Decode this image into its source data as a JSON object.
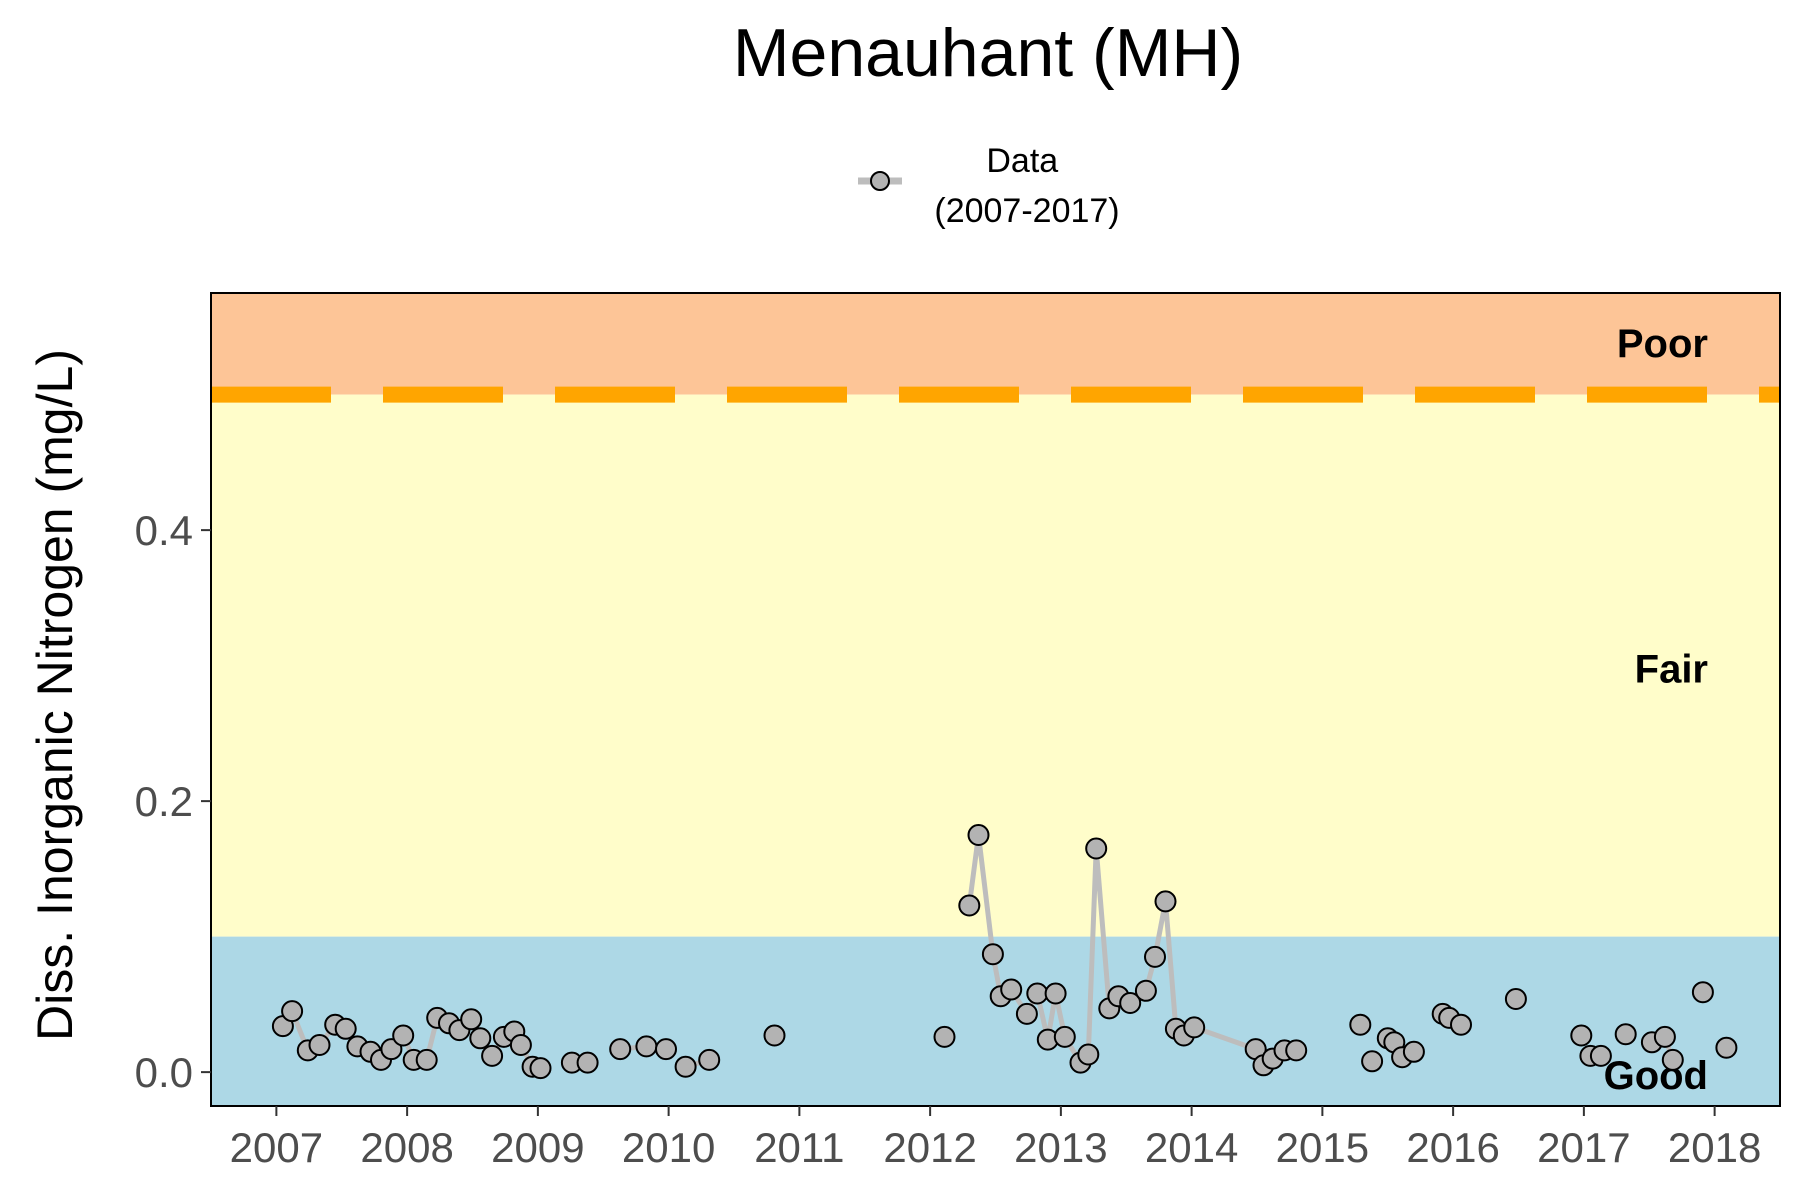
{
  "chart_data": {
    "type": "line",
    "title": "Menauhant (MH)",
    "xlabel": "",
    "ylabel": "Diss. Inorganic Nitrogen (mg/L)",
    "xlim": [
      2006.5,
      2018.5
    ],
    "ylim": [
      -0.025,
      0.575
    ],
    "x_ticks": [
      "2007",
      "2008",
      "2009",
      "2010",
      "2011",
      "2012",
      "2013",
      "2014",
      "2015",
      "2016",
      "2017",
      "2018"
    ],
    "y_ticks": [
      "0.0",
      "0.2",
      "0.4"
    ],
    "y_tick_values": [
      0.0,
      0.2,
      0.4
    ],
    "legend": {
      "position": "top",
      "label": "Data\n(2007-2017)",
      "label_lines": [
        "Data",
        "(2007-2017)"
      ]
    },
    "threshold": {
      "value": 0.5,
      "color": "#ffa500",
      "style": "dashed"
    },
    "zones": [
      {
        "label": "Poor",
        "from": 0.5,
        "to": 0.575,
        "color": "#fdc597"
      },
      {
        "label": "Fair",
        "from": 0.1,
        "to": 0.5,
        "color": "#fffdca"
      },
      {
        "label": "Good",
        "from": -0.025,
        "to": 0.1,
        "color": "#add8e6"
      }
    ],
    "series": [
      {
        "name": "Data (2007-2017)",
        "line_color": "#bdbdbd",
        "marker_fill": "#b3b3b3",
        "marker_stroke": "#000000",
        "segments": [
          [
            [
              2007.05,
              0.034
            ],
            [
              2007.12,
              0.045
            ],
            [
              2007.24,
              0.016
            ],
            [
              2007.33,
              0.02
            ],
            [
              2007.45,
              0.035
            ],
            [
              2007.53,
              0.032
            ],
            [
              2007.62,
              0.019
            ],
            [
              2007.72,
              0.015
            ],
            [
              2007.8,
              0.009
            ],
            [
              2007.88,
              0.017
            ],
            [
              2007.97,
              0.027
            ],
            [
              2008.05,
              0.009
            ],
            [
              2008.15,
              0.009
            ],
            [
              2008.23,
              0.04
            ],
            [
              2008.32,
              0.036
            ],
            [
              2008.4,
              0.031
            ],
            [
              2008.49,
              0.039
            ],
            [
              2008.56,
              0.025
            ],
            [
              2008.65,
              0.012
            ],
            [
              2008.74,
              0.026
            ],
            [
              2008.82,
              0.03
            ],
            [
              2008.87,
              0.02
            ],
            [
              2008.96,
              0.004
            ],
            [
              2009.02,
              0.003
            ]
          ],
          [
            [
              2009.26,
              0.007
            ],
            [
              2009.38,
              0.007
            ]
          ],
          [
            [
              2009.63,
              0.017
            ],
            [
              2009.83,
              0.019
            ],
            [
              2009.98,
              0.017
            ]
          ],
          [
            [
              2010.13,
              0.004
            ],
            [
              2010.31,
              0.009
            ]
          ],
          [
            [
              2010.81,
              0.027
            ]
          ],
          [
            [
              2012.11,
              0.026
            ]
          ],
          [
            [
              2012.3,
              0.123
            ],
            [
              2012.37,
              0.175
            ],
            [
              2012.48,
              0.087
            ],
            [
              2012.54,
              0.056
            ],
            [
              2012.62,
              0.061
            ],
            [
              2012.74,
              0.043
            ],
            [
              2012.82,
              0.058
            ],
            [
              2012.9,
              0.024
            ],
            [
              2012.96,
              0.058
            ],
            [
              2013.03,
              0.026
            ],
            [
              2013.15,
              0.007
            ],
            [
              2013.21,
              0.013
            ],
            [
              2013.27,
              0.165
            ],
            [
              2013.37,
              0.047
            ],
            [
              2013.44,
              0.056
            ],
            [
              2013.53,
              0.051
            ],
            [
              2013.65,
              0.06
            ],
            [
              2013.72,
              0.085
            ],
            [
              2013.8,
              0.126
            ],
            [
              2013.88,
              0.032
            ],
            [
              2013.94,
              0.027
            ],
            [
              2014.02,
              0.033
            ],
            [
              2014.49,
              0.017
            ]
          ],
          [
            [
              2014.55,
              0.005
            ],
            [
              2014.62,
              0.01
            ],
            [
              2014.71,
              0.016
            ],
            [
              2014.8,
              0.016
            ]
          ],
          [
            [
              2015.29,
              0.035
            ]
          ],
          [
            [
              2015.38,
              0.008
            ]
          ],
          [
            [
              2015.5,
              0.025
            ],
            [
              2015.55,
              0.022
            ],
            [
              2015.61,
              0.011
            ],
            [
              2015.7,
              0.015
            ]
          ],
          [
            [
              2015.92,
              0.043
            ],
            [
              2015.97,
              0.04
            ],
            [
              2016.06,
              0.035
            ]
          ],
          [
            [
              2016.48,
              0.054
            ]
          ],
          [
            [
              2016.98,
              0.027
            ]
          ],
          [
            [
              2017.05,
              0.012
            ],
            [
              2017.13,
              0.012
            ]
          ],
          [
            [
              2017.32,
              0.028
            ]
          ],
          [
            [
              2017.52,
              0.022
            ]
          ],
          [
            [
              2017.62,
              0.026
            ],
            [
              2017.68,
              0.009
            ]
          ],
          [
            [
              2017.91,
              0.059
            ]
          ],
          [
            [
              2018.09,
              0.018
            ]
          ]
        ]
      }
    ]
  }
}
